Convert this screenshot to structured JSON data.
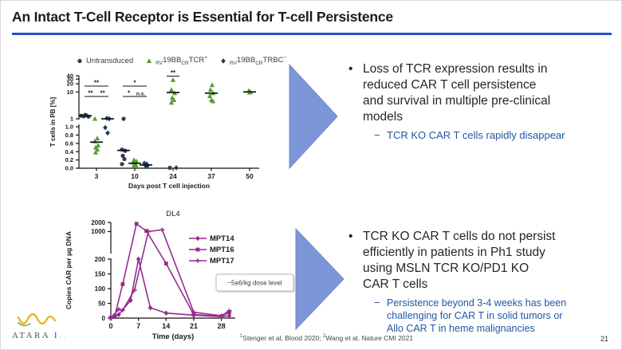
{
  "header": {
    "title": "An Intact T-Cell Receptor is Essential for T-cell Persistence"
  },
  "colors": {
    "title_underline": "#2553c1",
    "arrow": "#7d96d8",
    "arrow_edge": "#7388cf",
    "body_text": "#262626",
    "sub_bullet_text": "#2157a4",
    "scatter_untransduced": "#333a50",
    "scatter_tcr_pos": "#4f9e2e",
    "scatter_trbc_neg": "#1f3864",
    "line_series": "#962b8f",
    "mean_bar": "#111111",
    "logo_gold": "#e9b424",
    "logo_green": "#8aa83c"
  },
  "bullets": [
    {
      "bullet_glyph": "•",
      "main": "Loss of TCR expression results in\nreduced CAR T cell persistence\nand survival in multiple pre-clinical\nmodels",
      "dash_glyph": "−",
      "sub": "TCR KO CAR T cells rapidly disappear"
    },
    {
      "bullet_glyph": "•",
      "main": "TCR KO CAR T cells do not persist\nefficiently in patients in Ph1 study\nusing MSLN TCR KO/PD1 KO\nCAR T cells",
      "dash_glyph": "−",
      "sub": "Persistence beyond 3-4 weeks has been\nchallenging for CAR T in solid tumors or\nAllo CAR T in heme malignancies"
    }
  ],
  "footer": {
    "footnote_parts": [
      [
        "sup",
        "1"
      ],
      [
        "txt",
        "Stenger et al, Blood 2020; "
      ],
      [
        "sup",
        "2"
      ],
      [
        "txt",
        "Wang et al, Nature CMI 2021"
      ]
    ],
    "page_number": "21",
    "logo_text": "ATARA I",
    "logo_text_faded": ".."
  },
  "chart_data": [
    {
      "type": "scatter",
      "title": "",
      "ylabel": "T cells in PB [%]",
      "xlabel": "Days post T cell injection",
      "categories": [
        3,
        10,
        24,
        37,
        50
      ],
      "y_axis": {
        "broken": true,
        "bottom_segment_ticks": [
          0.0,
          0.2,
          0.4,
          0.6,
          0.8,
          1.0
        ],
        "top_segment_ticks": [
          1,
          10,
          20,
          30,
          40
        ]
      },
      "legend": [
        {
          "label_parts": [
            [
              "txt",
              "Untransduced"
            ]
          ],
          "marker": "circle",
          "color": "#333a50"
        },
        {
          "label_parts": [
            [
              "sub",
              "RV"
            ],
            [
              "txt",
              "19BB"
            ],
            [
              "sub",
              "CR"
            ],
            [
              "txt",
              "TCR"
            ],
            [
              "sup",
              "+"
            ]
          ],
          "marker": "triangle",
          "color": "#4f9e2e"
        },
        {
          "label_parts": [
            [
              "sub",
              "RV"
            ],
            [
              "txt",
              "19BB"
            ],
            [
              "sub",
              "CR"
            ],
            [
              "txt",
              "TRBC"
            ],
            [
              "sup",
              "−"
            ]
          ],
          "marker": "diamond",
          "color": "#1f3864"
        }
      ],
      "series": [
        {
          "name": "Untransduced",
          "marker": "circle",
          "color": "#333a50",
          "points": [
            [
              3,
              1.25,
              -16
            ],
            [
              3,
              1.35,
              -13
            ],
            [
              3,
              1.2,
              -10
            ],
            [
              3,
              1.3,
              -19
            ],
            [
              3,
              1.4,
              -14
            ],
            [
              10,
              1.0,
              -14
            ],
            [
              10,
              0.45,
              -16
            ],
            [
              10,
              0.42,
              -12
            ],
            [
              10,
              0.3,
              -15
            ],
            [
              10,
              0.22,
              -13
            ],
            [
              10,
              0.1,
              -16
            ],
            [
              24,
              0.01,
              -4
            ]
          ],
          "means": [
            [
              3,
              1.3,
              -14
            ],
            [
              10,
              0.43,
              -14
            ]
          ]
        },
        {
          "name": "RV19BBCR TCR+",
          "marker": "triangle",
          "color": "#4f9e2e",
          "points": [
            [
              3,
              1.0,
              -2
            ],
            [
              3,
              0.72,
              1
            ],
            [
              3,
              0.65,
              -2
            ],
            [
              3,
              0.55,
              2
            ],
            [
              3,
              0.5,
              -1
            ],
            [
              3,
              0.45,
              1
            ],
            [
              3,
              0.38,
              -1
            ],
            [
              10,
              0.2,
              -1
            ],
            [
              10,
              0.17,
              2
            ],
            [
              10,
              0.14,
              -2
            ],
            [
              10,
              0.1,
              1
            ],
            [
              10,
              0.07,
              -1
            ],
            [
              10,
              0.05,
              2
            ],
            [
              24,
              28,
              0
            ],
            [
              24,
              12,
              -2
            ],
            [
              24,
              9,
              2
            ],
            [
              24,
              6,
              -1
            ],
            [
              24,
              5,
              1
            ],
            [
              24,
              4,
              -2
            ],
            [
              37,
              18,
              1
            ],
            [
              37,
              12,
              -1
            ],
            [
              37,
              9,
              2
            ],
            [
              37,
              7,
              -2
            ],
            [
              37,
              5,
              0
            ],
            [
              37,
              4.5,
              2
            ],
            [
              50,
              11,
              -1
            ],
            [
              50,
              10,
              1
            ],
            [
              50,
              9.5,
              0
            ]
          ],
          "means": [
            [
              3,
              0.63,
              0
            ],
            [
              10,
              0.12,
              0
            ],
            [
              24,
              9.5,
              0
            ],
            [
              37,
              9,
              0
            ],
            [
              50,
              10,
              0
            ]
          ]
        },
        {
          "name": "RV19BBCR TRBC−",
          "marker": "diamond",
          "color": "#1f3864",
          "points": [
            [
              3,
              1.05,
              13
            ],
            [
              3,
              1.0,
              16
            ],
            [
              3,
              0.98,
              11
            ],
            [
              3,
              0.85,
              14
            ],
            [
              10,
              0.12,
              12
            ],
            [
              10,
              0.1,
              15
            ],
            [
              10,
              0.08,
              13
            ],
            [
              10,
              0.06,
              16
            ],
            [
              10,
              0.05,
              14
            ],
            [
              24,
              0.01,
              4
            ]
          ],
          "means": [
            [
              3,
              1.0,
              14
            ],
            [
              10,
              0.08,
              14
            ]
          ]
        }
      ],
      "significance": [
        {
          "day": 3,
          "kind": "pair-left",
          "label": "**"
        },
        {
          "day": 3,
          "kind": "pair-right",
          "label": "**"
        },
        {
          "day": 3,
          "kind": "span",
          "label": "**"
        },
        {
          "day": 10,
          "kind": "pair-left",
          "label": "*"
        },
        {
          "day": 10,
          "kind": "pair-right",
          "label": "n.s."
        },
        {
          "day": 10,
          "kind": "span",
          "label": "*"
        },
        {
          "day": 24,
          "kind": "single",
          "label": "**"
        }
      ]
    },
    {
      "type": "line",
      "title": "DL4",
      "ylabel": "Copies CAR per µg DNA",
      "xlabel": "Time (days)",
      "x_ticks": [
        0,
        7,
        14,
        21,
        28
      ],
      "y_axis": {
        "broken": true,
        "bottom_segment_ticks": [
          0,
          50,
          100,
          150,
          200
        ],
        "top_segment_ticks": [
          1000,
          2000
        ]
      },
      "annotation": "~5e6/kg dose level",
      "series": [
        {
          "name": "MPT14",
          "marker": "diamond",
          "color": "#962b8f",
          "points": [
            [
              0,
              2
            ],
            [
              2,
              12
            ],
            [
              5,
              60
            ],
            [
              7,
              200
            ],
            [
              10,
              35
            ],
            [
              14,
              17
            ],
            [
              21,
              10
            ],
            [
              28,
              5
            ],
            [
              30,
              8
            ]
          ]
        },
        {
          "name": "MPT16",
          "marker": "square",
          "color": "#962b8f",
          "points": [
            [
              0,
              2
            ],
            [
              1,
              8
            ],
            [
              3,
              115
            ],
            [
              6.5,
              1800
            ],
            [
              9,
              1050
            ],
            [
              14,
              185
            ],
            [
              21,
              12
            ],
            [
              28,
              6
            ],
            [
              30,
              20
            ]
          ]
        },
        {
          "name": "MPT17",
          "marker": "plus",
          "color": "#962b8f",
          "points": [
            [
              0,
              1
            ],
            [
              2,
              30
            ],
            [
              3,
              27
            ],
            [
              6,
              95
            ],
            [
              9.5,
              1000
            ],
            [
              13,
              1150
            ],
            [
              21,
              20
            ],
            [
              28,
              8
            ],
            [
              30,
              25
            ]
          ]
        }
      ]
    }
  ]
}
